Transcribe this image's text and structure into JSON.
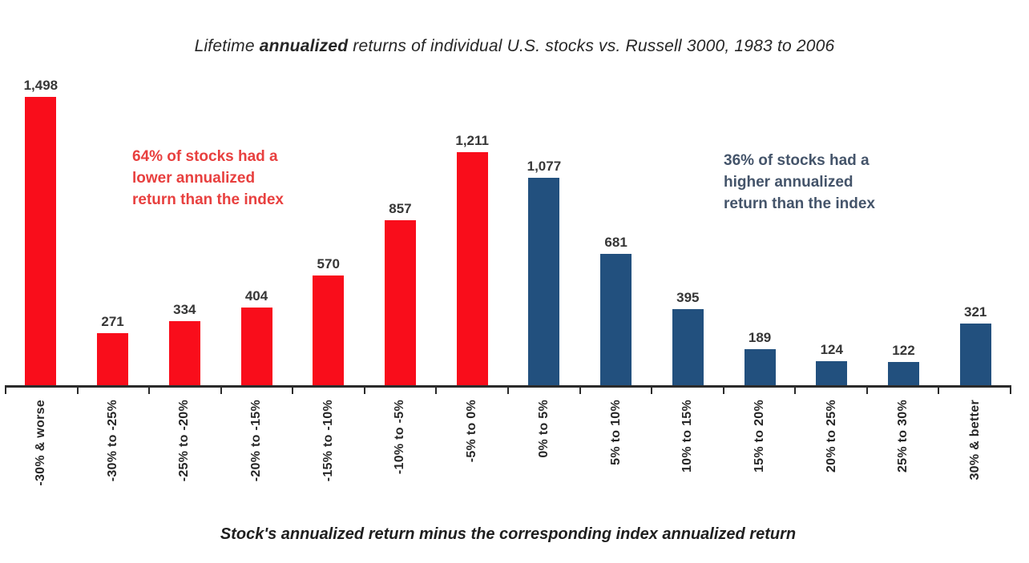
{
  "title": {
    "prefix": "Lifetime ",
    "emphasis": "annualized",
    "suffix": " returns of individual U.S. stocks vs. Russell 3000, 1983 to 2006"
  },
  "annotations": {
    "lower": {
      "text": "64% of stocks had a\nlower annualized\nreturn than the index",
      "color": "#e8403f"
    },
    "higher": {
      "text": "36% of stocks had a\nhigher annualized\nreturn than the index",
      "color": "#44546a"
    }
  },
  "chart_data": {
    "type": "bar",
    "title": "Lifetime annualized returns of individual U.S. stocks vs. Russell 3000, 1983 to 2006",
    "xlabel": "Stock's annualized return minus the corresponding index annualized return",
    "ylabel": "",
    "categories": [
      "-30% & worse",
      "-30% to -25%",
      "-25% to -20%",
      "-20% to -15%",
      "-15% to -10%",
      "-10% to -5%",
      "-5% to 0%",
      "0% to 5%",
      "5% to 10%",
      "10% to 15%",
      "15% to 20%",
      "20% to 25%",
      "25% to 30%",
      "30% & better"
    ],
    "values": [
      1498,
      271,
      334,
      404,
      570,
      857,
      1211,
      1077,
      681,
      395,
      189,
      124,
      122,
      321
    ],
    "value_labels": [
      "1,498",
      "271",
      "334",
      "404",
      "570",
      "857",
      "1,211",
      "1,077",
      "681",
      "395",
      "189",
      "124",
      "122",
      "321"
    ],
    "series": [
      {
        "name": "Lower annualized return than index (64% of stocks)",
        "color": "#f90d1b",
        "category_indexes": [
          0,
          1,
          2,
          3,
          4,
          5,
          6
        ]
      },
      {
        "name": "Higher annualized return than index (36% of stocks)",
        "color": "#22507e",
        "category_indexes": [
          7,
          8,
          9,
          10,
          11,
          12,
          13
        ]
      }
    ],
    "series_split_index": 7,
    "bar_colors": {
      "below_index": "#f90d1b",
      "above_index": "#22507e"
    },
    "ylim": [
      0,
      1498
    ],
    "y_axis_shown": false,
    "grid": false,
    "legend": false
  }
}
